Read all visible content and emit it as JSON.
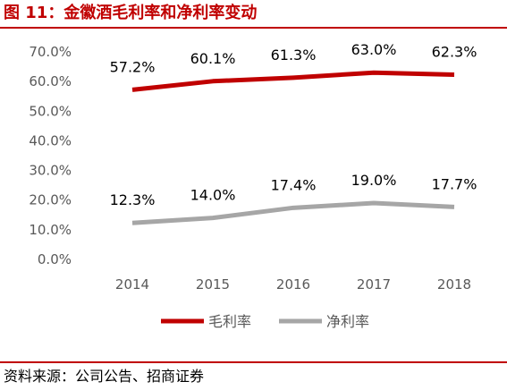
{
  "figure": {
    "title": "图 11：金徽酒毛利率和净利率变动",
    "source": "资料来源：公司公告、招商证券"
  },
  "chart_data": {
    "type": "line",
    "x": [
      "2014",
      "2015",
      "2016",
      "2017",
      "2018"
    ],
    "series": [
      {
        "name": "毛利率",
        "values": [
          57.2,
          60.1,
          61.3,
          63.0,
          62.3
        ],
        "labels": [
          "57.2%",
          "60.1%",
          "61.3%",
          "63.0%",
          "62.3%"
        ],
        "color": "#c00000"
      },
      {
        "name": "净利率",
        "values": [
          12.3,
          14.0,
          17.4,
          19.0,
          17.7
        ],
        "labels": [
          "12.3%",
          "14.0%",
          "17.4%",
          "19.0%",
          "17.7%"
        ],
        "color": "#a6a6a6"
      }
    ],
    "y_ticks": [
      0,
      10,
      20,
      30,
      40,
      50,
      60,
      70
    ],
    "y_tick_labels": [
      "0.0%",
      "10.0%",
      "20.0%",
      "30.0%",
      "40.0%",
      "50.0%",
      "60.0%",
      "70.0%"
    ],
    "ylim": [
      0,
      70
    ],
    "grid": false,
    "legend": "bottom"
  }
}
